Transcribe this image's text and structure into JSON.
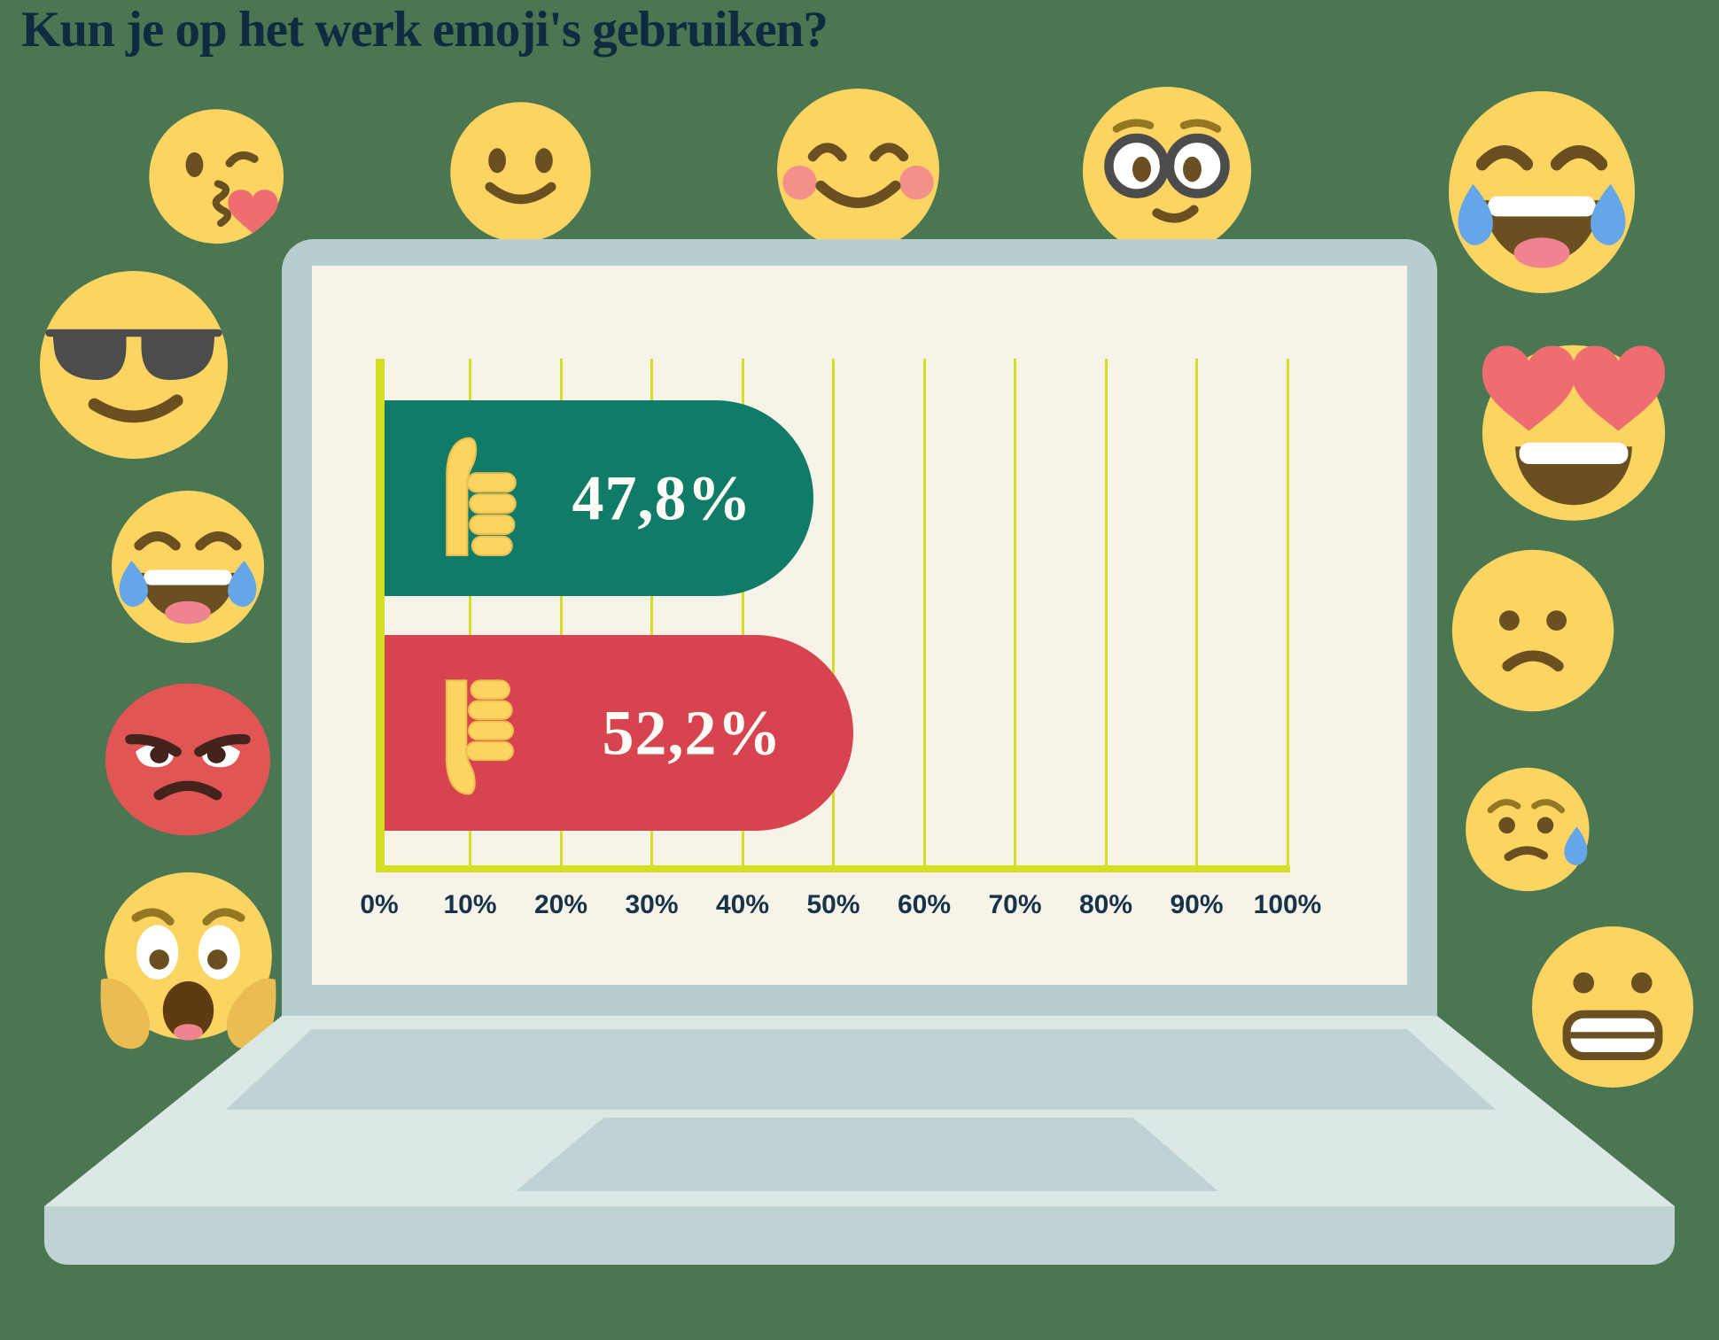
{
  "title": "Kun je op het werk emoji's gebruiken?",
  "chart_data": {
    "type": "bar",
    "orientation": "horizontal",
    "title": "Kun je op het werk emoji's gebruiken?",
    "categories": [
      "thumbs-up (ja)",
      "thumbs-down (nee)"
    ],
    "values": [
      47.8,
      52.2
    ],
    "value_labels": [
      "47,8%",
      "52,2%"
    ],
    "series_colors": [
      "#107c68",
      "#d7444f"
    ],
    "xlim": [
      0,
      100
    ],
    "ticks": [
      "0%",
      "10%",
      "20%",
      "30%",
      "40%",
      "50%",
      "60%",
      "70%",
      "80%",
      "90%",
      "100%"
    ],
    "grid": true,
    "gridline_color": "#d5df22",
    "axis_line_color": "#d5df22",
    "plot_background": "#f7f3e9",
    "legend": "none"
  },
  "colors": {
    "page_background": "#4a7652",
    "title_text": "#0e2b40",
    "laptop_bezel": "#b8cdd0",
    "laptop_base_light": "#dbe8e6",
    "laptop_base_mid": "#bfd3d4",
    "screen_background": "#f7f3e9",
    "tick_text": "#16334a",
    "bar_label_text": "#fdfcf7",
    "emoji_yellow": "#fcd462",
    "emoji_feature_brown": "#6a4f20",
    "tear_blue": "#64a6e8",
    "heart_pink": "#ef6d71",
    "angry_red": "#e15555"
  },
  "decorations": {
    "emojis": [
      "face-blowing-a-kiss",
      "slightly-smiling-face",
      "smiling-face-with-blushing-cheeks",
      "nerd-face-with-glasses",
      "face-with-tears-of-joy-right",
      "smiling-face-with-sunglasses",
      "face-with-tears-of-joy-left",
      "angry-pouting-face",
      "screaming-face",
      "heart-eyes-face",
      "frowning-face",
      "sad-face-with-sweat-drop",
      "grimacing-face"
    ]
  }
}
